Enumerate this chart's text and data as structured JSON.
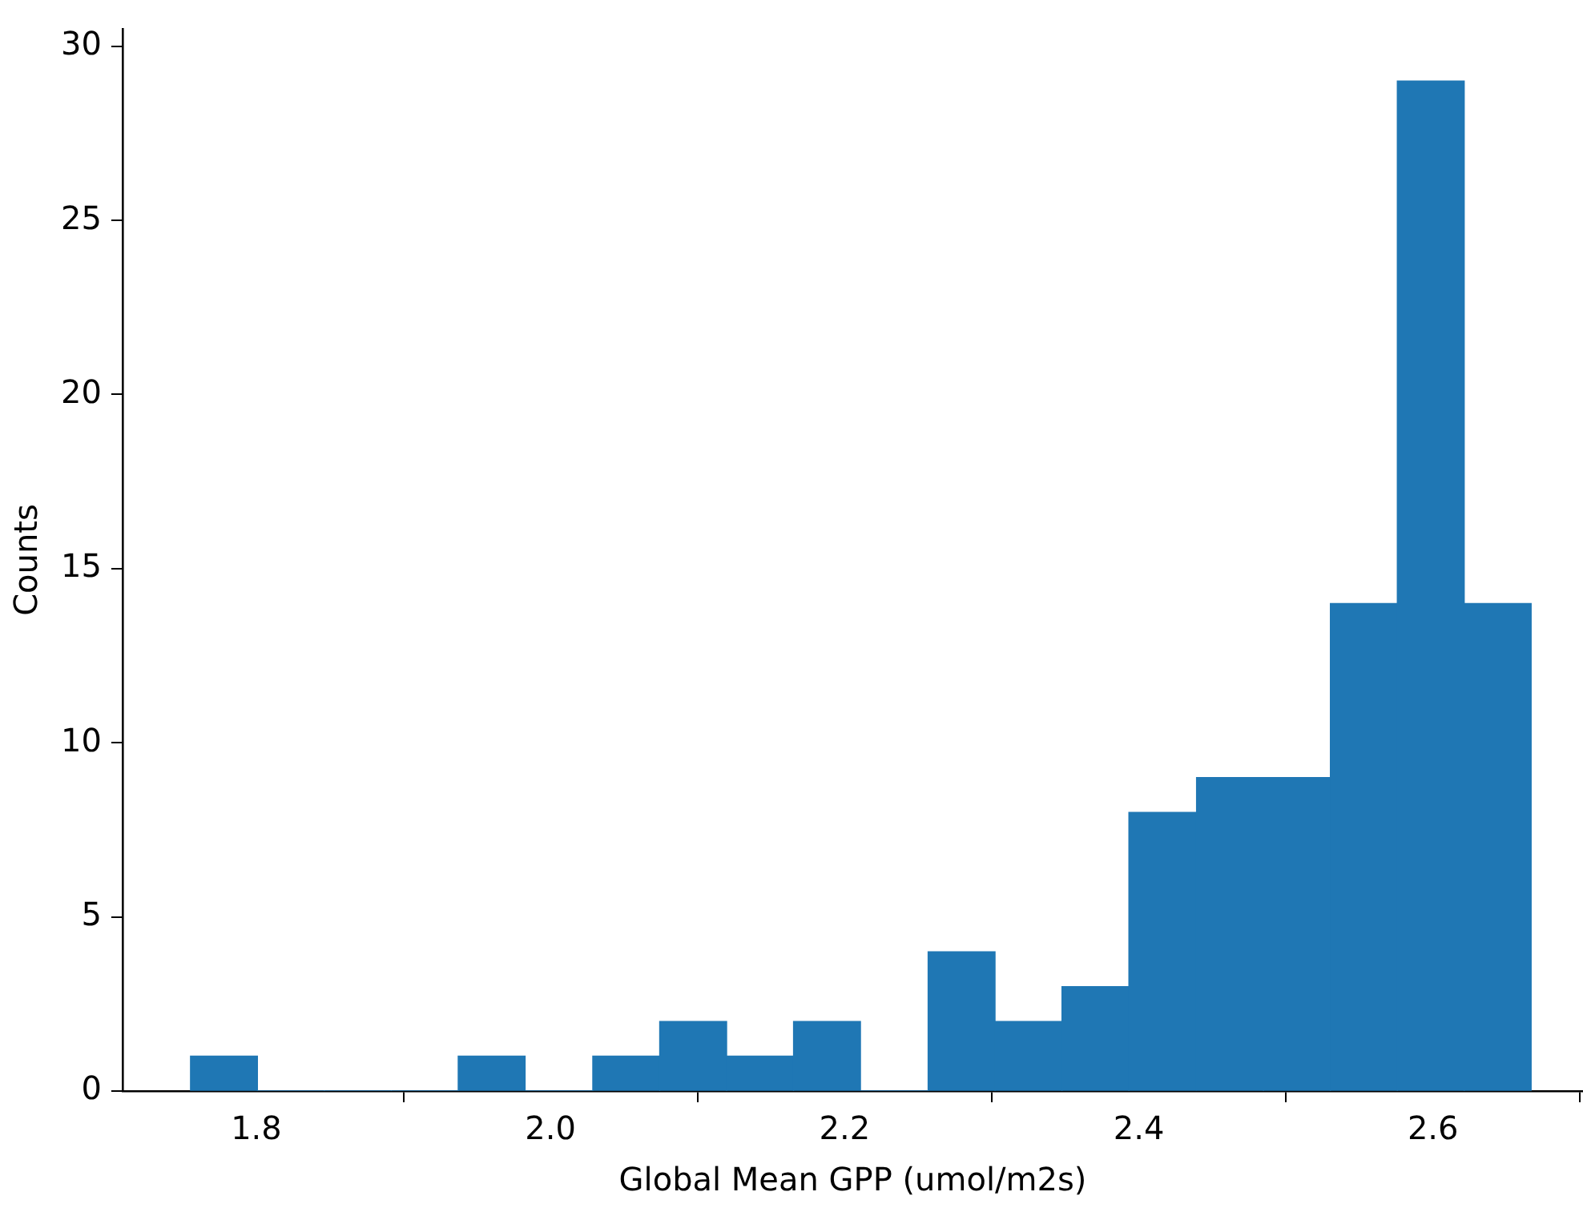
{
  "chart_data": {
    "type": "histogram",
    "xlabel": "Global Mean GPP (umol/m2s)",
    "ylabel": "Counts",
    "bins": [
      1.755,
      1.801,
      1.846,
      1.892,
      1.937,
      1.983,
      2.029,
      2.074,
      2.12,
      2.165,
      2.211,
      2.257,
      2.302,
      2.348,
      2.393,
      2.439,
      2.485,
      2.53,
      2.576,
      2.621,
      2.667
    ],
    "values": [
      1,
      0,
      0,
      0,
      1,
      0,
      1,
      2,
      1,
      2,
      0,
      4,
      2,
      3,
      8,
      9,
      9,
      14,
      29,
      14
    ],
    "color": "#1f77b4",
    "xlim": [
      1.709,
      2.702
    ],
    "xticks": [
      {
        "value": 1.8,
        "label": "1.8"
      },
      {
        "value": 2.0,
        "label": "2.0"
      },
      {
        "value": 2.2,
        "label": "2.2"
      },
      {
        "value": 2.4,
        "label": "2.4"
      },
      {
        "value": 2.6,
        "label": "2.6"
      }
    ],
    "ylim": [
      0,
      30.5
    ],
    "yticks": [
      0,
      5,
      10,
      15,
      20,
      25,
      30
    ],
    "grid": false,
    "legend": false
  }
}
